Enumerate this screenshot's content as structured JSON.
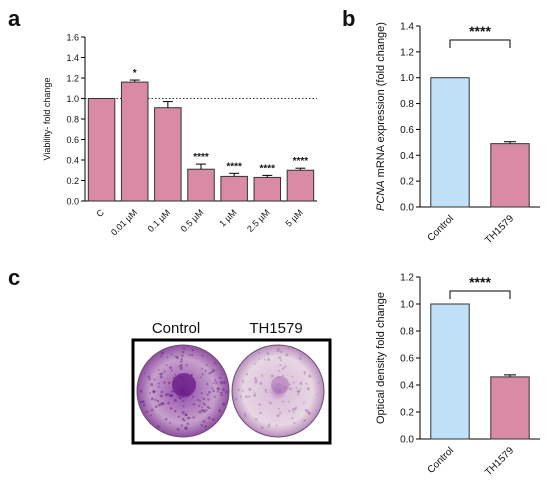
{
  "panels": {
    "a": "a",
    "b": "b",
    "c": "c"
  },
  "chart_data": [
    {
      "type": "bar",
      "panel": "a",
      "ylabel": "Viability- fold change",
      "ylim": [
        0,
        1.6
      ],
      "yticks": [
        0.0,
        0.2,
        0.4,
        0.6,
        0.8,
        1.0,
        1.2,
        1.4,
        1.6
      ],
      "ytick_labels": [
        "0.0",
        "0.2",
        "0.4",
        "0.6",
        "0.8",
        "1.0",
        "1.2",
        "1.4",
        "1.6"
      ],
      "categories": [
        "C",
        "0.01 µM",
        "0.1 µM",
        "0.5 µM",
        "1 µM",
        "2.5 µM",
        "5 µM"
      ],
      "values": [
        1.0,
        1.16,
        0.91,
        0.31,
        0.24,
        0.23,
        0.3
      ],
      "errors": [
        0.0,
        0.02,
        0.06,
        0.05,
        0.03,
        0.02,
        0.02
      ],
      "significance": [
        "",
        "*",
        "",
        "****",
        "****",
        "****",
        "****"
      ],
      "reference_line": 1.0,
      "bar_color": "#d98aa5",
      "bar_edge": "#333333"
    },
    {
      "type": "bar",
      "panel": "b",
      "ylabel_italic": "PCNA",
      "ylabel_rest": " mRNA expression (fold change)",
      "ylim": [
        0,
        1.4
      ],
      "yticks": [
        0.0,
        0.2,
        0.4,
        0.6,
        0.8,
        1.0,
        1.2,
        1.4
      ],
      "ytick_labels": [
        "0.0",
        "0.2",
        "0.4",
        "0.6",
        "0.8",
        "1.0",
        "1.2",
        "1.4"
      ],
      "categories": [
        "Control",
        "TH1579"
      ],
      "values": [
        1.0,
        0.49
      ],
      "errors": [
        0.0,
        0.015
      ],
      "colors": [
        "#bfe0f7",
        "#d98aa5"
      ],
      "bracket_label": "****"
    },
    {
      "type": "bar",
      "panel": "c",
      "ylabel": "Optical density fold change",
      "ylim": [
        0,
        1.2
      ],
      "yticks": [
        0.0,
        0.2,
        0.4,
        0.6,
        0.8,
        1.0,
        1.2
      ],
      "ytick_labels": [
        "0.0",
        "0.2",
        "0.4",
        "0.6",
        "0.8",
        "1.0",
        "1.2"
      ],
      "categories": [
        "Control",
        "TH1579"
      ],
      "values": [
        1.0,
        0.46
      ],
      "errors": [
        0.0,
        0.015
      ],
      "colors": [
        "#bfe0f7",
        "#d98aa5"
      ],
      "bracket_label": "****"
    }
  ],
  "photo": {
    "labels": [
      "Control",
      "TH1579"
    ],
    "plate_colors": [
      "#9b5aa8",
      "#c79ac4"
    ]
  }
}
